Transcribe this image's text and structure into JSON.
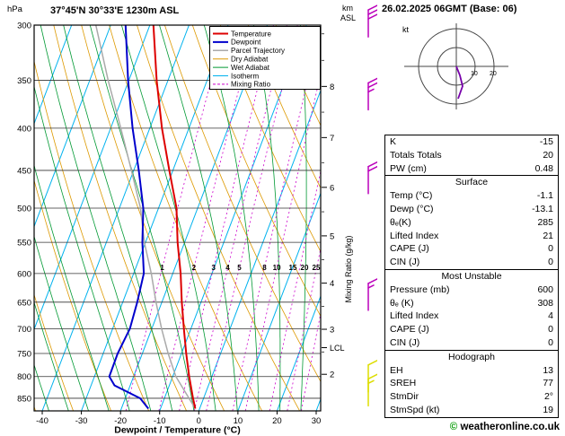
{
  "header": {
    "yaxis_unit": "hPa",
    "title": "37°45'N 30°33'E 1230m ASL",
    "alt_unit_line1": "km",
    "alt_unit_line2": "ASL",
    "datetime": "26.02.2025 06GMT (Base: 06)"
  },
  "chart_data": {
    "type": "line",
    "subtype": "skewt_log_p_sounding",
    "title": "37°45'N 30°33'E 1230m ASL",
    "xlabel": "Dewpoint / Temperature (°C)",
    "ylabel": "hPa",
    "x_ticks": [
      -40,
      -30,
      -20,
      -10,
      0,
      10,
      20,
      30
    ],
    "xlim": [
      -44.5,
      36.5
    ],
    "pressure_ticks": [
      300,
      350,
      400,
      450,
      500,
      550,
      600,
      650,
      700,
      750,
      800,
      850
    ],
    "pressure_range": [
      300,
      880
    ],
    "altitude_ticks_km": [
      2,
      3,
      4,
      5,
      6,
      7,
      8
    ],
    "mixing_ratio_label": "Mixing Ratio (g/kg)",
    "mixing_ratio_values": [
      1,
      2,
      3,
      4,
      5,
      8,
      10,
      15,
      20,
      25
    ],
    "lcl": {
      "label": "LCL",
      "pressure": 738
    },
    "legend": [
      {
        "label": "Temperature",
        "color": "#dd0000",
        "width": 2,
        "dash": ""
      },
      {
        "label": "Dewpoint",
        "color": "#0000cc",
        "width": 2,
        "dash": ""
      },
      {
        "label": "Parcel Trajectory",
        "color": "#aaaaaa",
        "width": 1.5,
        "dash": ""
      },
      {
        "label": "Dry Adiabat",
        "color": "#dd9900",
        "width": 1,
        "dash": ""
      },
      {
        "label": "Wet Adiabat",
        "color": "#009933",
        "width": 1,
        "dash": ""
      },
      {
        "label": "Isotherm",
        "color": "#00b2ee",
        "width": 1,
        "dash": ""
      },
      {
        "label": "Mixing Ratio",
        "color": "#cc00cc",
        "width": 1,
        "dash": "3,2"
      }
    ],
    "series": [
      {
        "name": "Temperature",
        "color": "#dd0000",
        "width": 2,
        "points": [
          [
            875,
            -1.1
          ],
          [
            850,
            -2.7
          ],
          [
            800,
            -5.8
          ],
          [
            750,
            -8.8
          ],
          [
            700,
            -11.8
          ],
          [
            650,
            -14.9
          ],
          [
            600,
            -18.0
          ],
          [
            550,
            -21.8
          ],
          [
            500,
            -25.4
          ],
          [
            450,
            -30.9
          ],
          [
            400,
            -36.9
          ],
          [
            350,
            -42.9
          ],
          [
            300,
            -49.1
          ]
        ]
      },
      {
        "name": "Dewpoint",
        "color": "#0000cc",
        "width": 2,
        "points": [
          [
            875,
            -13.1
          ],
          [
            850,
            -16.2
          ],
          [
            820,
            -24.0
          ],
          [
            800,
            -26.2
          ],
          [
            750,
            -26.3
          ],
          [
            700,
            -25.6
          ],
          [
            650,
            -26.3
          ],
          [
            600,
            -27.4
          ],
          [
            550,
            -30.8
          ],
          [
            500,
            -33.9
          ],
          [
            450,
            -38.7
          ],
          [
            400,
            -44.4
          ],
          [
            350,
            -50.2
          ],
          [
            300,
            -56.2
          ]
        ]
      },
      {
        "name": "Parcel Trajectory",
        "color": "#aaaaaa",
        "width": 1.5,
        "points": [
          [
            875,
            -1.1
          ],
          [
            800,
            -9.2
          ],
          [
            750,
            -13.4
          ],
          [
            700,
            -17.5
          ],
          [
            650,
            -21.5
          ],
          [
            600,
            -25.5
          ],
          [
            550,
            -30.3
          ],
          [
            500,
            -34.6
          ],
          [
            450,
            -40.6
          ],
          [
            400,
            -47.4
          ],
          [
            350,
            -55.3
          ],
          [
            300,
            -63.8
          ]
        ]
      }
    ],
    "background": {
      "isotherms": {
        "color": "#00b2ee",
        "start": -120,
        "end": 40,
        "step": 10
      },
      "dry_adiabats": {
        "color": "#dd9900",
        "theta_start": 240,
        "theta_end": 390,
        "step": 10
      },
      "wet_adiabats": {
        "color": "#009933",
        "t1000_start": -55,
        "t1000_end": 35,
        "step": 5
      },
      "mixing_ratio": {
        "color": "#cc00cc"
      },
      "grid_color": "#333333"
    }
  },
  "wind_barbs": [
    {
      "pressure": 310,
      "full": 3,
      "half": 0,
      "color": "#bb00bb"
    },
    {
      "pressure": 380,
      "full": 2,
      "half": 1,
      "color": "#bb00bb"
    },
    {
      "pressure": 480,
      "full": 2,
      "half": 0,
      "color": "#bb00bb"
    },
    {
      "pressure": 665,
      "full": 1,
      "half": 1,
      "color": "#bb00bb"
    },
    {
      "pressure": 835,
      "full": 1,
      "half": 0,
      "color": "#dddd00"
    },
    {
      "pressure": 868,
      "full": 1,
      "half": 1,
      "color": "#dddd00"
    }
  ],
  "hodograph": {
    "unit_label": "kt",
    "rings_kt": [
      10,
      20
    ],
    "ring_labels": [
      "10",
      "20"
    ],
    "trace_color": "#7700aa"
  },
  "table": {
    "groups": [
      {
        "title": "",
        "rows": [
          [
            "K",
            "-15"
          ],
          [
            "Totals Totals",
            "20"
          ],
          [
            "PW (cm)",
            "0.48"
          ]
        ]
      },
      {
        "title": "Surface",
        "rows": [
          [
            "Temp (°C)",
            "-1.1"
          ],
          [
            "Dewp (°C)",
            "-13.1"
          ],
          [
            "θₑ(K)",
            "285"
          ],
          [
            "Lifted Index",
            "21"
          ],
          [
            "CAPE (J)",
            "0"
          ],
          [
            "CIN (J)",
            "0"
          ]
        ]
      },
      {
        "title": "Most Unstable",
        "rows": [
          [
            "Pressure (mb)",
            "600"
          ],
          [
            "θₑ (K)",
            "308"
          ],
          [
            "Lifted Index",
            "4"
          ],
          [
            "CAPE (J)",
            "0"
          ],
          [
            "CIN (J)",
            "0"
          ]
        ]
      },
      {
        "title": "Hodograph",
        "rows": [
          [
            "EH",
            "13"
          ],
          [
            "SREH",
            "77"
          ],
          [
            "StmDir",
            "2°"
          ],
          [
            "StmSpd (kt)",
            "19"
          ]
        ]
      }
    ]
  },
  "footer": {
    "symbol": "©",
    "text": "weatheronline.co.uk"
  }
}
